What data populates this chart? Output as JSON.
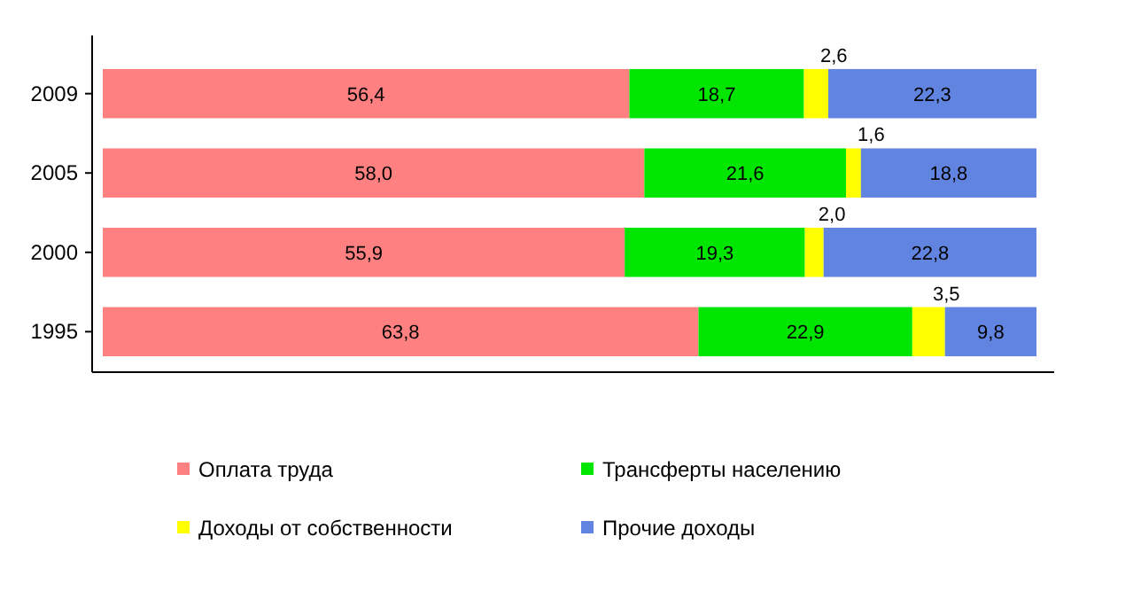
{
  "chart_data": {
    "type": "bar",
    "orientation": "horizontal",
    "stacked": true,
    "legend": "bottom",
    "categories": [
      "2009",
      "2005",
      "2000",
      "1995"
    ],
    "series": [
      {
        "name": "Оплата труда",
        "color": "#ff8080",
        "values": [
          56.4,
          58.0,
          55.9,
          63.8
        ],
        "value_labels": [
          "56,4",
          "58,0",
          "55,9",
          "63,8"
        ]
      },
      {
        "name": "Трансферты населению",
        "color": "#00e600",
        "values": [
          18.7,
          21.6,
          19.3,
          22.9
        ],
        "value_labels": [
          "18,7",
          "21,6",
          "19,3",
          "22,9"
        ]
      },
      {
        "name": "Доходы от собственности",
        "color": "#ffff00",
        "values": [
          2.6,
          1.6,
          2.0,
          3.5
        ],
        "value_labels": [
          "2,6",
          "1,6",
          "2,0",
          "3,5"
        ]
      },
      {
        "name": "Прочие доходы",
        "color": "#6184e0",
        "values": [
          22.3,
          18.8,
          22.8,
          9.8
        ],
        "value_labels": [
          "22,3",
          "18,8",
          "22,8",
          "9,8"
        ]
      }
    ]
  }
}
